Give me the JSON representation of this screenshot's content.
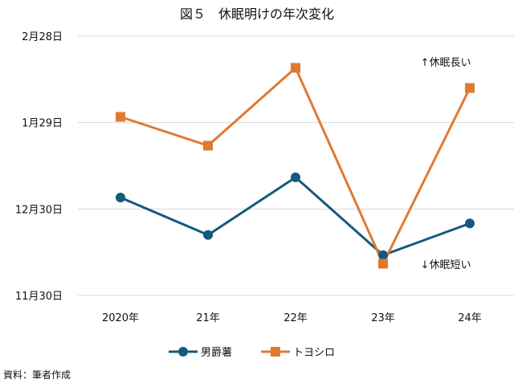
{
  "chart_data": {
    "type": "line",
    "title": "図５　休眠明けの年次変化",
    "categories": [
      "2020年",
      "21年",
      "22年",
      "23年",
      "24年"
    ],
    "y_unit": "days after 11月30日",
    "y_ticks": [
      {
        "value": 0,
        "label": "11月30日"
      },
      {
        "value": 30,
        "label": "12月30日"
      },
      {
        "value": 60,
        "label": "1月29日"
      },
      {
        "value": 90,
        "label": "2月28日"
      }
    ],
    "ylim": [
      0,
      90
    ],
    "grid": true,
    "series": [
      {
        "name": "男爵薯",
        "color": "#145a7c",
        "marker": "circle",
        "values": [
          34,
          21,
          41,
          14,
          25
        ]
      },
      {
        "name": "トヨシロ",
        "color": "#e07a30",
        "marker": "square",
        "values": [
          62,
          52,
          79,
          11,
          72
        ]
      }
    ],
    "annotations": [
      {
        "text": "↑休眠長い",
        "position": "top-right"
      },
      {
        "text": "↓休眠短い",
        "position": "bottom-right"
      }
    ],
    "legend_position": "bottom"
  },
  "source": "資料：筆者作成"
}
